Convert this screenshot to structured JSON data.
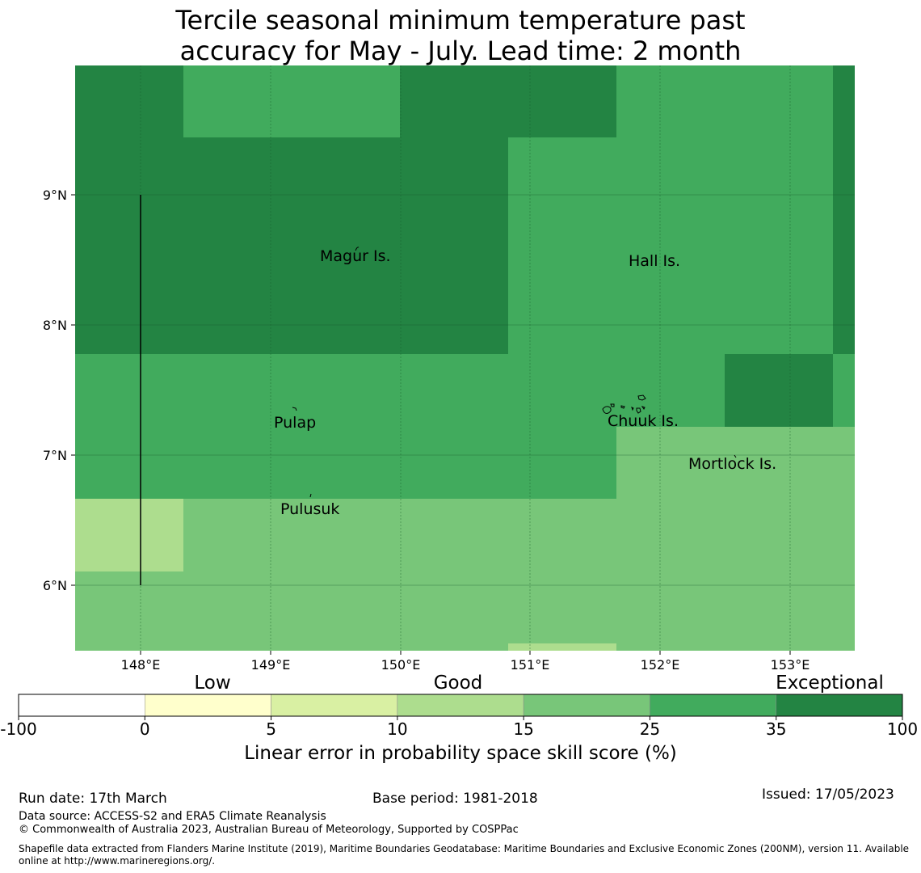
{
  "title": {
    "line1": "Tercile seasonal minimum temperature past",
    "line2": "accuracy for May - July. Lead time: 2 month"
  },
  "colors": {
    "c_neg": "#ffffff",
    "c_0_5": "#ffffcc",
    "c_5_10": "#d9f0a3",
    "c_10_15": "#addd8e",
    "c_15_25": "#78c679",
    "c_25_35": "#41ab5d",
    "c_35_100": "#238443"
  },
  "map": {
    "lon_ticks": [
      "148°E",
      "149°E",
      "150°E",
      "151°E",
      "152°E",
      "153°E"
    ],
    "lat_ticks": [
      "9°N",
      "8°N",
      "7°N",
      "6°N"
    ],
    "grid_values": [
      [
        3,
        4,
        4,
        3,
        3,
        4,
        4,
        3
      ],
      [
        3,
        3,
        3,
        3,
        4,
        4,
        4,
        3
      ],
      [
        3,
        3,
        3,
        3,
        4,
        4,
        4,
        3
      ],
      [
        3,
        3,
        3,
        3,
        4,
        4,
        4,
        3
      ],
      [
        4,
        4,
        4,
        4,
        4,
        4,
        3,
        4
      ],
      [
        4,
        4,
        4,
        4,
        4,
        2,
        2,
        2
      ],
      [
        1,
        2,
        2,
        2,
        2,
        2,
        2,
        2
      ],
      [
        2,
        2,
        2,
        2,
        2,
        2,
        2,
        2
      ],
      [
        2,
        2,
        2,
        2,
        1,
        2,
        2,
        2
      ]
    ],
    "grid_legend": "rows north to south, columns west to east; index into colorbar classes 0..6 (0:-100-0, 1:10-15, 2:15-25, 3:35-100, 4:25-35)",
    "places": {
      "magur": "Magur Is.",
      "hall": "Hall Is.",
      "pulap": "Pulap",
      "chuuk": "Chuuk Is.",
      "mortlock": "Mortlock Is.",
      "pulusuk": "Pulusuk"
    }
  },
  "colorbar": {
    "categories": [
      "Low",
      "Good",
      "Exceptional"
    ],
    "ticks": [
      "-100",
      "0",
      "5",
      "10",
      "15",
      "25",
      "35",
      "100"
    ],
    "label": "Linear error in probability space skill score (%)"
  },
  "footer": {
    "run_date": "Run date: 17th March",
    "base_period": "Base period: 1981-2018",
    "issued": "Issued: 17/05/2023",
    "data_source": "Data source: ACCESS-S2 and ERA5 Climate Reanalysis",
    "copyright": "© Commonwealth of Australia 2023, Australian Bureau of Meteorology, Supported by COSPPac",
    "shapefile": "Shapefile data extracted from Flanders Marine Institute (2019), Maritime Boundaries Geodatabase: Maritime Boundaries and Exclusive Economic Zones (200NM), version 11. Available online at http://www.marineregions.org/."
  }
}
